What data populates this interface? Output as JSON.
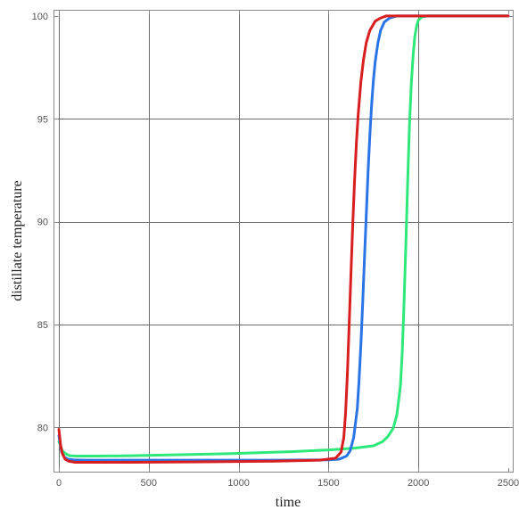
{
  "chart_data": {
    "type": "line",
    "title": "",
    "xlabel": "time",
    "ylabel": "distillate temperature",
    "xlim": [
      -30,
      2530
    ],
    "ylim": [
      77.8,
      100.3
    ],
    "x_ticks": [
      0,
      500,
      1000,
      1500,
      2000,
      2500
    ],
    "x_tick_labels": [
      "0",
      "500",
      "1000",
      "1500",
      "2000",
      "2500"
    ],
    "y_ticks": [
      80,
      85,
      90,
      95,
      100
    ],
    "y_tick_labels": [
      "80",
      "85",
      "90",
      "95",
      "100"
    ],
    "x_grid": [
      0,
      500,
      1000,
      1500,
      2000
    ],
    "y_grid": [
      80,
      85,
      90,
      95
    ],
    "grid": true,
    "legend": "none",
    "series": [
      {
        "color": "#2ee87a",
        "x": [
          0,
          20,
          40,
          60,
          100,
          200,
          400,
          700,
          1000,
          1300,
          1500,
          1650,
          1750,
          1800,
          1830,
          1860,
          1880,
          1900,
          1910,
          1920,
          1930,
          1940,
          1950,
          1960,
          1970,
          1980,
          1990,
          2000,
          2020,
          2050,
          2100,
          2300,
          2500
        ],
        "y": [
          79.3,
          78.85,
          78.7,
          78.62,
          78.6,
          78.6,
          78.62,
          78.67,
          78.73,
          78.82,
          78.9,
          78.99,
          79.1,
          79.3,
          79.55,
          79.95,
          80.6,
          82.0,
          83.6,
          86.0,
          88.8,
          91.8,
          94.6,
          96.6,
          98.0,
          99.0,
          99.5,
          99.8,
          99.95,
          100,
          100,
          100,
          100
        ]
      },
      {
        "color": "#2a74e6",
        "x": [
          0,
          15,
          30,
          50,
          80,
          150,
          400,
          800,
          1200,
          1500,
          1560,
          1600,
          1620,
          1640,
          1660,
          1670,
          1680,
          1690,
          1700,
          1710,
          1720,
          1730,
          1740,
          1750,
          1760,
          1775,
          1790,
          1810,
          1840,
          1880,
          1950,
          2200,
          2500
        ],
        "y": [
          79.6,
          78.8,
          78.55,
          78.45,
          78.42,
          78.4,
          78.4,
          78.4,
          78.4,
          78.42,
          78.45,
          78.6,
          78.85,
          79.5,
          80.9,
          82.3,
          84.0,
          86.0,
          88.2,
          90.3,
          92.4,
          94.2,
          95.7,
          96.9,
          97.8,
          98.7,
          99.3,
          99.7,
          99.9,
          100,
          100,
          100,
          100
        ]
      },
      {
        "color": "#d81e1e",
        "x": [
          0,
          10,
          20,
          35,
          55,
          90,
          150,
          400,
          800,
          1200,
          1450,
          1540,
          1570,
          1585,
          1595,
          1605,
          1615,
          1625,
          1635,
          1645,
          1655,
          1665,
          1680,
          1695,
          1710,
          1730,
          1760,
          1790,
          1820,
          1870,
          2000,
          2250,
          2500
        ],
        "y": [
          79.9,
          79.1,
          78.7,
          78.45,
          78.35,
          78.3,
          78.3,
          78.3,
          78.32,
          78.35,
          78.4,
          78.5,
          78.8,
          79.5,
          80.7,
          82.6,
          85.0,
          87.5,
          89.9,
          92.0,
          93.8,
          95.2,
          96.8,
          97.9,
          98.7,
          99.3,
          99.75,
          99.9,
          100,
          100,
          100,
          100,
          100
        ]
      }
    ]
  }
}
